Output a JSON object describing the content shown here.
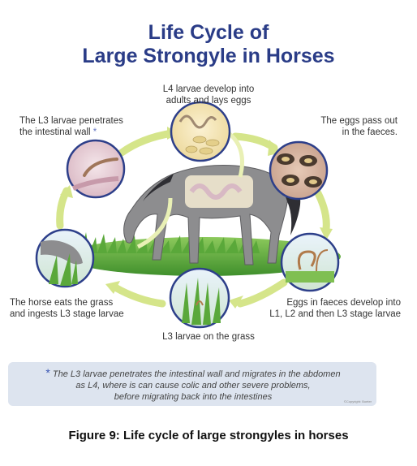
{
  "title_line1": "Life Cycle of",
  "title_line2": "Large Strongyle in Horses",
  "stages": {
    "l4_line1": "L4 larvae develop into",
    "l4_line2": "adults and lays eggs",
    "eggs_line1": "The eggs pass out",
    "eggs_line2": "in the faeces.",
    "develop_line1": "Eggs in faeces develop into",
    "develop_line2": "L1, L2 and then L3 stage larvae",
    "grass": "L3 larvae on the grass",
    "eats_line1": "The horse eats the grass",
    "eats_line2": "and ingests L3 stage larvae",
    "penetrate_line1": "The L3 larvae penetrates",
    "penetrate_line2": "the intestinal wall",
    "penetrate_star": "*"
  },
  "note": {
    "star": "*",
    "line1": "The L3 larvae penetrates the intestinal wall and migrates in the abdomen",
    "line2": "as L4, where is can cause colic and other severe problems,",
    "line3": "before migrating back into the intestines",
    "copyright": "©Copyright: Boeter"
  },
  "caption": "Figure 9: Life cycle of large strongyles in horses",
  "colors": {
    "title": "#2a3c87",
    "arrow": "#d5e58a",
    "circle_border": "#2d3f8a",
    "horse": "#8d8d8f",
    "grass": "#5aa83a",
    "note_bg": "#dde4ef"
  }
}
